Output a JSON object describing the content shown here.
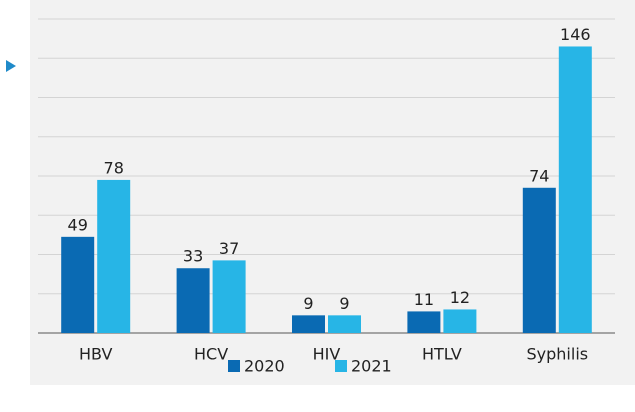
{
  "chart_data": {
    "type": "bar",
    "categories": [
      "HBV",
      "HCV",
      "HIV",
      "HTLV",
      "Syphilis"
    ],
    "series": [
      {
        "name": "2020",
        "color": "#0a6ab3",
        "values": [
          49,
          33,
          9,
          11,
          74
        ]
      },
      {
        "name": "2021",
        "color": "#27b5e6",
        "values": [
          78,
          37,
          9,
          12,
          146
        ]
      }
    ],
    "ylim": [
      0,
      160
    ],
    "yticks": [
      0,
      20,
      40,
      60,
      80,
      100,
      120,
      140,
      160
    ],
    "grid": true,
    "legend": "bottom"
  }
}
